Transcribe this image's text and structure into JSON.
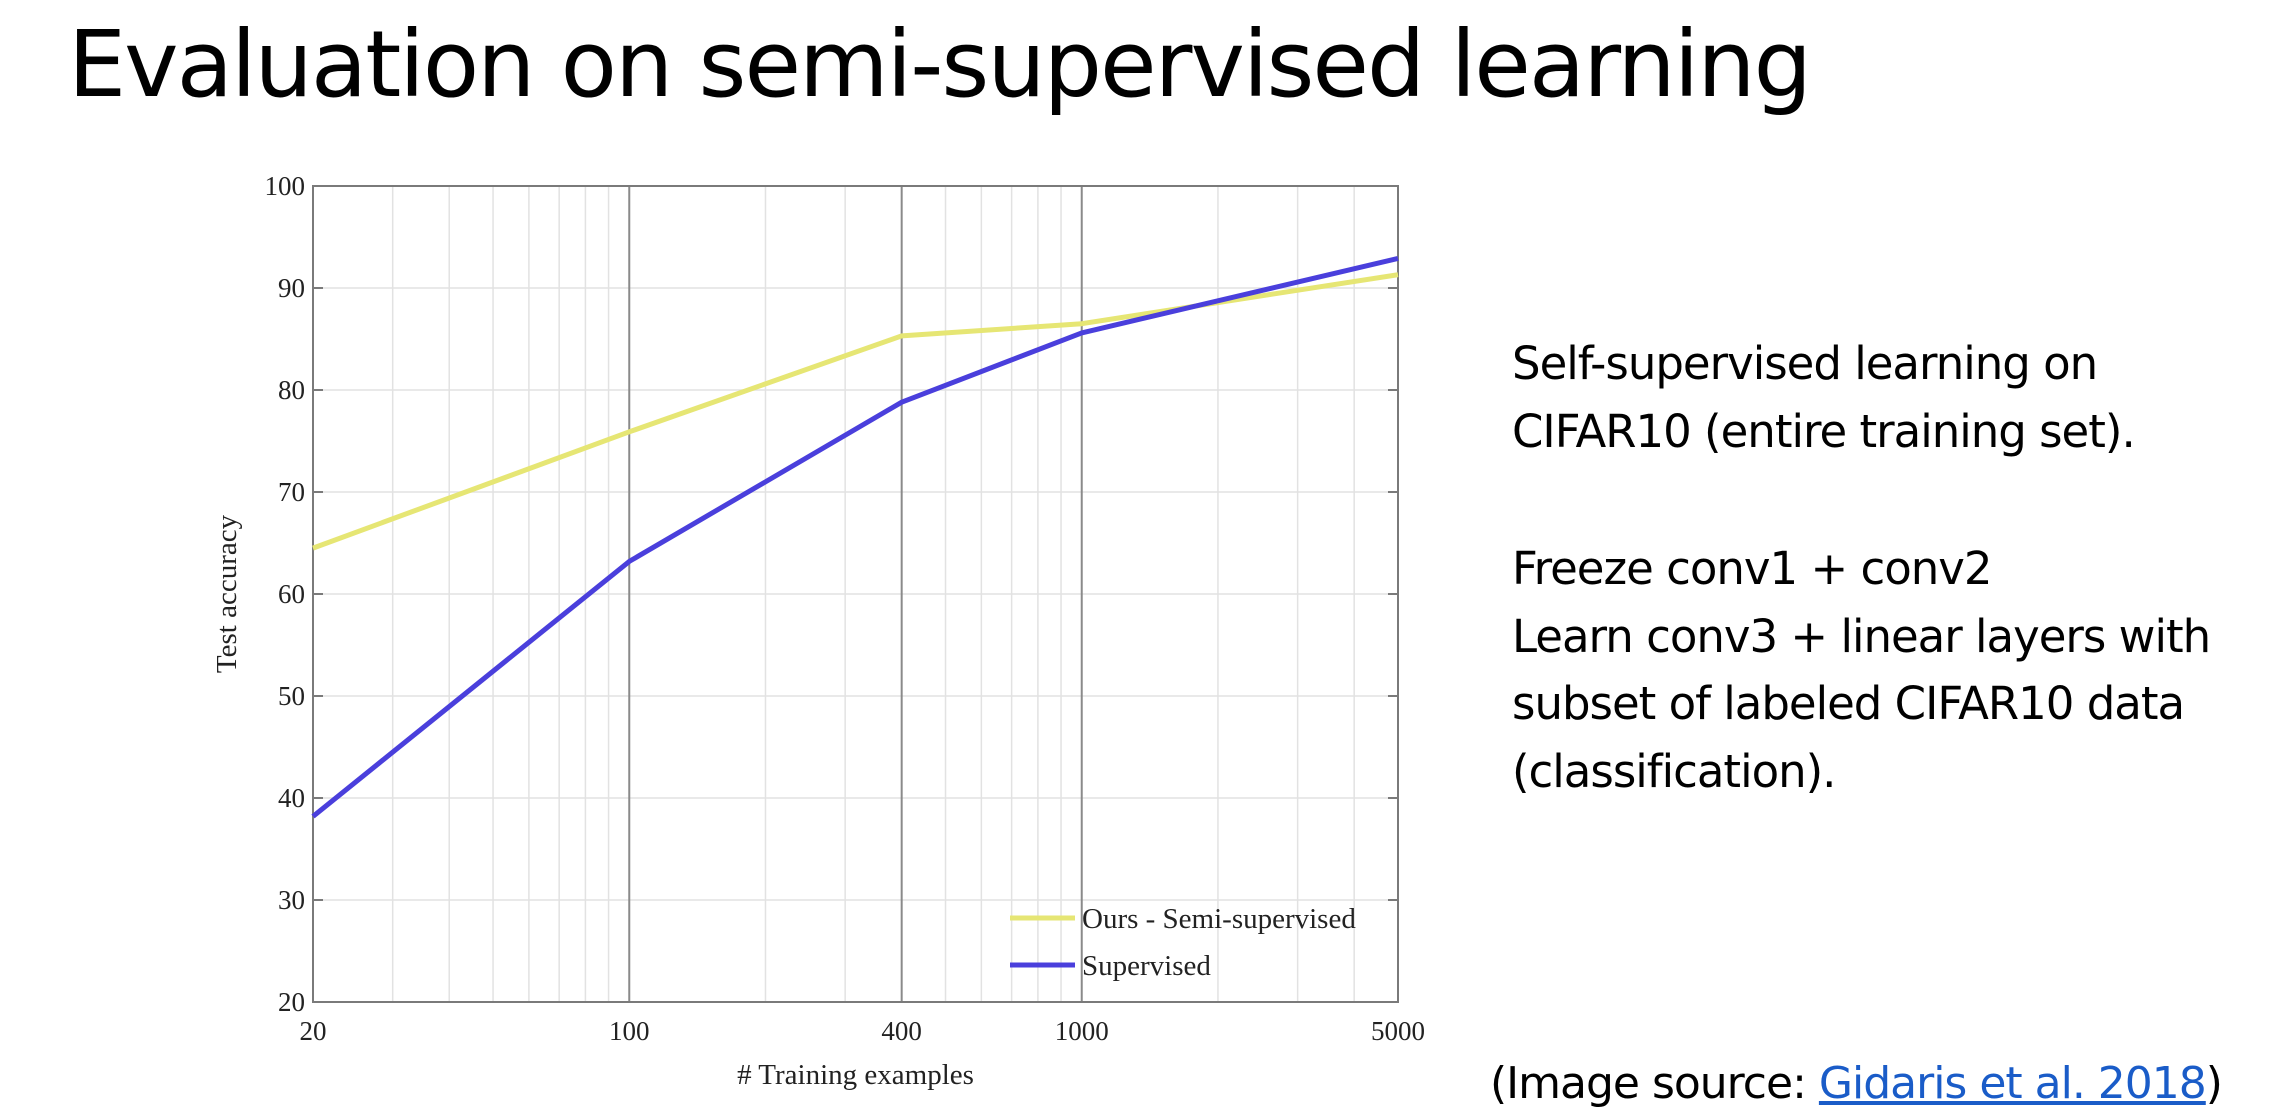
{
  "slide": {
    "title": "Evaluation on semi-supervised learning",
    "description_1": [
      "Self-supervised learning on",
      "CIFAR10 (entire training set)."
    ],
    "description_2": [
      "Freeze conv1 + conv2",
      "Learn conv3 + linear layers with",
      "subset of labeled CIFAR10 data",
      "(classification)."
    ],
    "source_prefix": "(Image source: ",
    "source_link": "Gidaris et al. 2018",
    "source_suffix": ")"
  },
  "chart_data": {
    "type": "line",
    "xlabel": "# Training examples",
    "ylabel": "Test accuracy",
    "x_scale": "log",
    "xlim": [
      20,
      5000
    ],
    "ylim": [
      20,
      100
    ],
    "x_ticks": [
      20,
      100,
      400,
      1000,
      5000
    ],
    "y_ticks": [
      20,
      30,
      40,
      50,
      60,
      70,
      80,
      90,
      100
    ],
    "grid": true,
    "legend_position": "bottom-right",
    "series": [
      {
        "name": "Ours - Semi-supervised",
        "color": "#e6e674",
        "x": [
          20,
          100,
          400,
          1000,
          5000
        ],
        "y": [
          64.5,
          75.9,
          85.3,
          86.5,
          91.3
        ]
      },
      {
        "name": "Supervised",
        "color": "#4a3fdc",
        "x": [
          20,
          100,
          400,
          1000,
          5000
        ],
        "y": [
          38.2,
          63.2,
          78.8,
          85.6,
          92.9
        ]
      }
    ]
  }
}
